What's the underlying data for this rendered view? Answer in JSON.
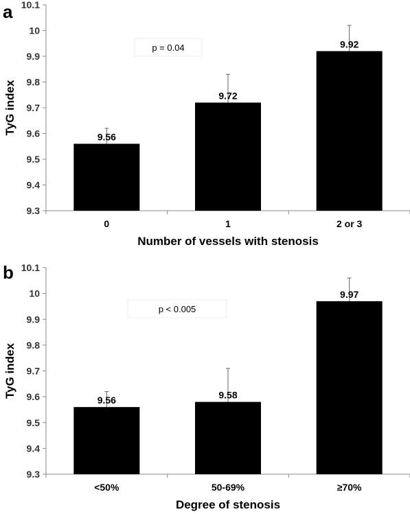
{
  "chart_data": [
    {
      "type": "bar",
      "panel_label": "a",
      "categories": [
        "0",
        "1",
        "2 or 3"
      ],
      "values": [
        9.56,
        9.72,
        9.92
      ],
      "error_upper": [
        9.62,
        9.83,
        10.02
      ],
      "data_labels": [
        "9.56",
        "9.72",
        "9.92"
      ],
      "xlabel": "Number of vessels with stenosis",
      "ylabel": "TyG index",
      "ylim": [
        9.3,
        10.1
      ],
      "yticks": [
        9.3,
        9.4,
        9.5,
        9.6,
        9.7,
        9.8,
        9.9,
        10,
        10.1
      ],
      "ytick_labels": [
        "9.3",
        "9.4",
        "9.5",
        "9.6",
        "9.7",
        "9.8",
        "9.9",
        "10",
        "10.1"
      ],
      "annotation": "p = 0.04",
      "bar_color": "#000000",
      "grid": false
    },
    {
      "type": "bar",
      "panel_label": "b",
      "categories": [
        "<50%",
        "50-69%",
        "≥70%"
      ],
      "values": [
        9.56,
        9.58,
        9.97
      ],
      "error_upper": [
        9.62,
        9.71,
        10.06
      ],
      "data_labels": [
        "9.56",
        "9.58",
        "9.97"
      ],
      "xlabel": "Degree of stenosis",
      "ylabel": "TyG index",
      "ylim": [
        9.3,
        10.1
      ],
      "yticks": [
        9.3,
        9.4,
        9.5,
        9.6,
        9.7,
        9.8,
        9.9,
        10,
        10.1
      ],
      "ytick_labels": [
        "9.3",
        "9.4",
        "9.5",
        "9.6",
        "9.7",
        "9.8",
        "9.9",
        "10",
        "10.1"
      ],
      "annotation": "p < 0.005",
      "bar_color": "#000000",
      "grid": false
    }
  ]
}
